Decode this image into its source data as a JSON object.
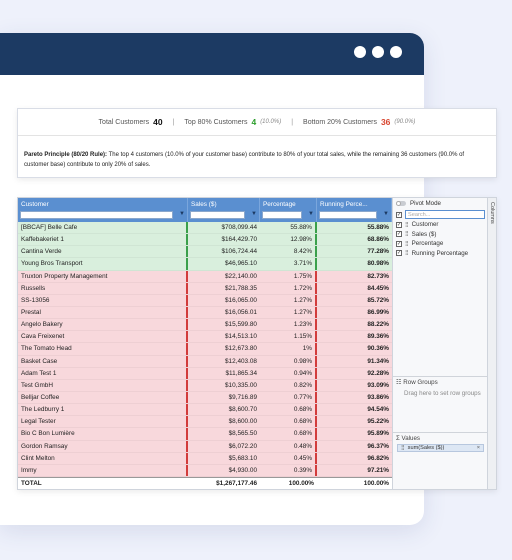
{
  "summary": {
    "total_label": "Total Customers",
    "total_value": "40",
    "top_label": "Top 80% Customers",
    "top_value": "4",
    "top_pct": "(10.0%)",
    "bottom_label": "Bottom 20% Customers",
    "bottom_value": "36",
    "bottom_pct": "(90.0%)",
    "pareto_title": "Pareto Principle (80/20 Rule):",
    "pareto_text": " The top 4 customers (10.0% of your customer base) contribute to 80% of your total sales, while the remaining 36 customers (90.0% of customer base) contribute to only 20% of sales."
  },
  "grid": {
    "columns": [
      "Customer",
      "Sales ($)",
      "Percentage",
      "Running Perce..."
    ],
    "rows": [
      {
        "customer": "[BBCAF] Belle Cafe",
        "sales": "$708,099.44",
        "pct": "55.88%",
        "running": "55.88%",
        "group": "top"
      },
      {
        "customer": "Kaffebakeriet 1",
        "sales": "$164,429.70",
        "pct": "12.98%",
        "running": "68.86%",
        "group": "top"
      },
      {
        "customer": "Cantina Verde",
        "sales": "$106,724.44",
        "pct": "8.42%",
        "running": "77.28%",
        "group": "top"
      },
      {
        "customer": "Young Bros Transport",
        "sales": "$46,965.10",
        "pct": "3.71%",
        "running": "80.98%",
        "group": "top"
      },
      {
        "customer": "Truxton Property Management",
        "sales": "$22,140.00",
        "pct": "1.75%",
        "running": "82.73%",
        "group": "bottom"
      },
      {
        "customer": "Russells",
        "sales": "$21,788.35",
        "pct": "1.72%",
        "running": "84.45%",
        "group": "bottom"
      },
      {
        "customer": "SS-13056",
        "sales": "$16,065.00",
        "pct": "1.27%",
        "running": "85.72%",
        "group": "bottom"
      },
      {
        "customer": "Prestal",
        "sales": "$16,056.01",
        "pct": "1.27%",
        "running": "86.99%",
        "group": "bottom"
      },
      {
        "customer": "Angelo Bakery",
        "sales": "$15,599.80",
        "pct": "1.23%",
        "running": "88.22%",
        "group": "bottom"
      },
      {
        "customer": "Cava Freixenet",
        "sales": "$14,513.10",
        "pct": "1.15%",
        "running": "89.36%",
        "group": "bottom"
      },
      {
        "customer": "The Tomato Head",
        "sales": "$12,673.80",
        "pct": "1%",
        "running": "90.36%",
        "group": "bottom"
      },
      {
        "customer": "Basket Case",
        "sales": "$12,403.08",
        "pct": "0.98%",
        "running": "91.34%",
        "group": "bottom"
      },
      {
        "customer": "Adam Test 1",
        "sales": "$11,865.34",
        "pct": "0.94%",
        "running": "92.28%",
        "group": "bottom"
      },
      {
        "customer": "Test GmbH",
        "sales": "$10,335.00",
        "pct": "0.82%",
        "running": "93.09%",
        "group": "bottom"
      },
      {
        "customer": "Belljar Coffee",
        "sales": "$9,716.89",
        "pct": "0.77%",
        "running": "93.86%",
        "group": "bottom"
      },
      {
        "customer": "The Ledburry 1",
        "sales": "$8,600.70",
        "pct": "0.68%",
        "running": "94.54%",
        "group": "bottom"
      },
      {
        "customer": "Legal Tester",
        "sales": "$8,600.00",
        "pct": "0.68%",
        "running": "95.22%",
        "group": "bottom"
      },
      {
        "customer": "Bio C Bon Lumière",
        "sales": "$8,565.50",
        "pct": "0.68%",
        "running": "95.89%",
        "group": "bottom"
      },
      {
        "customer": "Gordon Ramsay",
        "sales": "$6,072.20",
        "pct": "0.48%",
        "running": "96.37%",
        "group": "bottom"
      },
      {
        "customer": "Clint Melton",
        "sales": "$5,683.10",
        "pct": "0.45%",
        "running": "96.82%",
        "group": "bottom"
      },
      {
        "customer": "Immy",
        "sales": "$4,930.00",
        "pct": "0.39%",
        "running": "97.21%",
        "group": "bottom"
      }
    ],
    "total": {
      "label": "TOTAL",
      "sales": "$1,267,177.46",
      "pct": "100.00%",
      "running": "100.00%"
    }
  },
  "side_panel": {
    "pivot_label": "Pivot Mode",
    "search_placeholder": "Search...",
    "columns": [
      "Customer",
      "Sales ($)",
      "Percentage",
      "Running Percentage"
    ],
    "row_groups_title": "Row Groups",
    "row_groups_hint": "Drag here to set row groups",
    "values_title": "Values",
    "values_chip": "sum(Sales ($))",
    "vertical_tab": "Columns"
  },
  "colors": {
    "header_blue": "#5a8fd0",
    "top_green": "#d9efdd",
    "bottom_red": "#f8d8dc",
    "titlebar": "#1c3a63"
  }
}
